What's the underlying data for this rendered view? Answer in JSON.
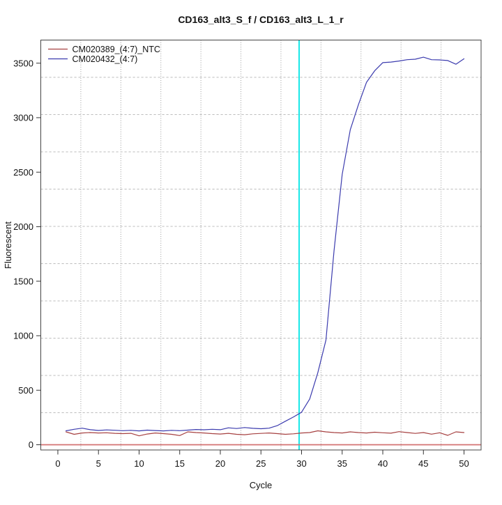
{
  "chart_data": {
    "type": "line",
    "title": "CD163_alt3_S_f / CD163_alt3_L_1_r",
    "xlabel": "Cycle",
    "ylabel": "Fluorescent",
    "x_ticks": [
      0,
      5,
      10,
      15,
      20,
      25,
      30,
      35,
      40,
      45,
      50
    ],
    "y_ticks": [
      0,
      500,
      1000,
      1500,
      2000,
      2500,
      3000,
      3500
    ],
    "xlim": [
      -2.1,
      52.1
    ],
    "ylim": [
      -48,
      3712
    ],
    "x_start": 1,
    "grid": {
      "nx": 11,
      "ny": 11,
      "color_h": "#BDBDBD",
      "color_v": "#999999",
      "style": "dotted"
    },
    "threshold_line": {
      "y": 0,
      "color": "#D47272"
    },
    "ct_line": {
      "x": 29.7,
      "color": "#00E5E5"
    },
    "legend_position": "top-left",
    "series": [
      {
        "name": "CM020389_(4:7)_NTC",
        "color": "#A64040",
        "values": [
          118,
          96,
          108,
          112,
          108,
          110,
          105,
          102,
          105,
          82,
          98,
          108,
          102,
          96,
          84,
          118,
          112,
          108,
          102,
          98,
          105,
          96,
          92,
          100,
          104,
          108,
          102,
          96,
          100,
          108,
          112,
          128,
          118,
          112,
          108,
          118,
          112,
          108,
          115,
          110,
          106,
          120,
          112,
          104,
          112,
          97,
          110,
          86,
          118,
          112
        ]
      },
      {
        "name": "CM020432_(4:7)",
        "color": "#3B3BAE",
        "values": [
          128,
          142,
          152,
          138,
          131,
          136,
          133,
          129,
          132,
          127,
          134,
          130,
          127,
          132,
          129,
          134,
          140,
          137,
          142,
          138,
          155,
          149,
          158,
          151,
          147,
          152,
          175,
          215,
          255,
          298,
          420,
          660,
          960,
          1780,
          2480,
          2890,
          3120,
          3325,
          3430,
          3505,
          3510,
          3520,
          3532,
          3536,
          3555,
          3532,
          3530,
          3524,
          3490,
          3540
        ]
      }
    ]
  }
}
